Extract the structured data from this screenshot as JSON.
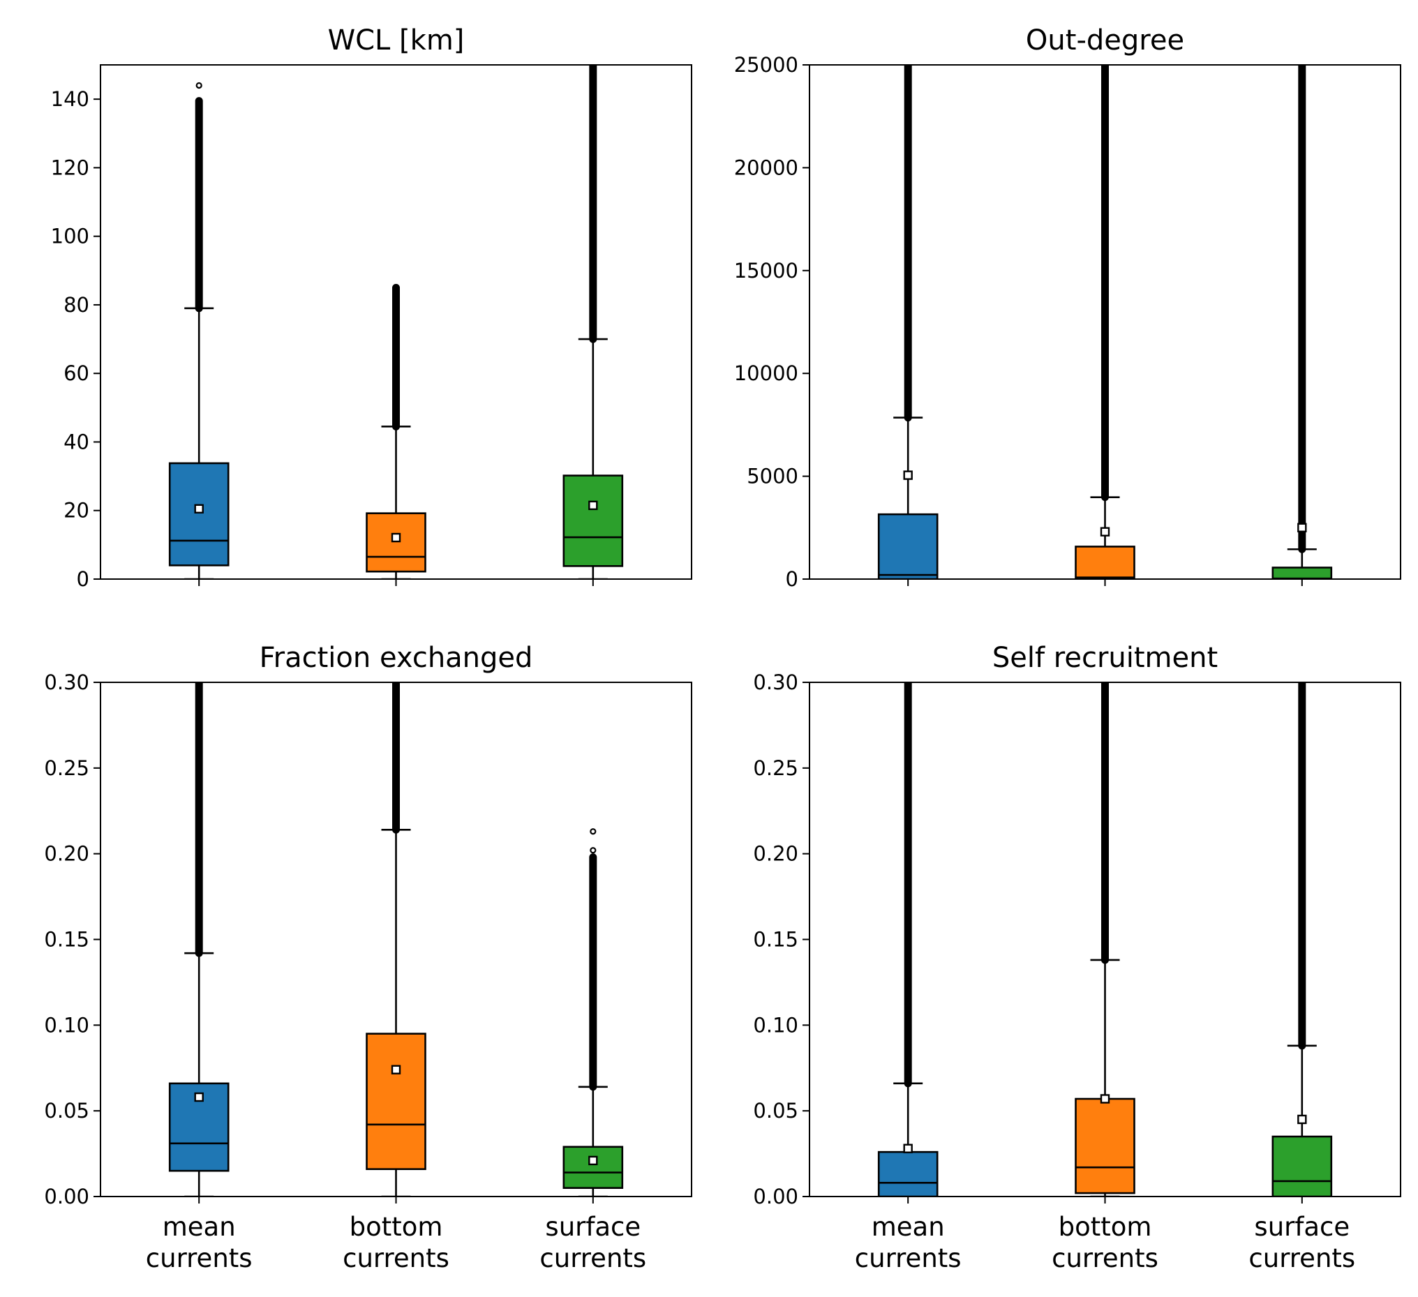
{
  "colors": {
    "mean": "#1f77b4",
    "bottom": "#ff7f0e",
    "surface": "#2ca02c"
  },
  "chart_data": [
    {
      "type": "box",
      "title": "WCL [km]",
      "ylim": [
        0,
        150
      ],
      "yticks": [
        "0",
        "20",
        "40",
        "60",
        "80",
        "100",
        "120",
        "140"
      ],
      "ytick_values": [
        0,
        20,
        40,
        60,
        80,
        100,
        120,
        140
      ],
      "categories": [
        "mean currents",
        "bottom currents",
        "surface currents"
      ],
      "show_xticklabels": false,
      "boxes": [
        {
          "q1": 4,
          "median": 11.2,
          "q3": 33.8,
          "whislo": 0,
          "whishi": 79,
          "mean": 20.5,
          "fliers_lo": 79,
          "fliers_hi": 139.5,
          "isolated": [
            144
          ]
        },
        {
          "q1": 2.2,
          "median": 6.5,
          "q3": 19.2,
          "whislo": 0,
          "whishi": 44.5,
          "mean": 12.1,
          "fliers_lo": 44.5,
          "fliers_hi": 85,
          "isolated": []
        },
        {
          "q1": 3.8,
          "median": 12.2,
          "q3": 30.2,
          "whislo": 0,
          "whishi": 70,
          "mean": 21.5,
          "fliers_lo": 70,
          "fliers_hi": 150,
          "isolated": []
        }
      ]
    },
    {
      "type": "box",
      "title": "Out-degree",
      "ylim": [
        0,
        25000
      ],
      "yticks": [
        "0",
        "5000",
        "10000",
        "15000",
        "20000",
        "25000"
      ],
      "ytick_values": [
        0,
        5000,
        10000,
        15000,
        20000,
        25000
      ],
      "categories": [
        "mean currents",
        "bottom currents",
        "surface currents"
      ],
      "show_xticklabels": false,
      "boxes": [
        {
          "q1": 0,
          "median": 200,
          "q3": 3150,
          "whislo": 0,
          "whishi": 7850,
          "mean": 5050,
          "fliers_lo": 7850,
          "fliers_hi": 25000,
          "isolated": []
        },
        {
          "q1": 0,
          "median": 80,
          "q3": 1580,
          "whislo": 0,
          "whishi": 3980,
          "mean": 2300,
          "fliers_lo": 3980,
          "fliers_hi": 25000,
          "isolated": []
        },
        {
          "q1": 0,
          "median": 30,
          "q3": 560,
          "whislo": 0,
          "whishi": 1450,
          "mean": 2500,
          "fliers_lo": 1450,
          "fliers_hi": 25000,
          "isolated": []
        }
      ]
    },
    {
      "type": "box",
      "title": "Fraction exchanged",
      "ylim": [
        0,
        0.3
      ],
      "yticks": [
        "0.00",
        "0.05",
        "0.10",
        "0.15",
        "0.20",
        "0.25",
        "0.30"
      ],
      "ytick_values": [
        0,
        0.05,
        0.1,
        0.15,
        0.2,
        0.25,
        0.3
      ],
      "categories": [
        "mean currents",
        "bottom currents",
        "surface currents"
      ],
      "show_xticklabels": true,
      "boxes": [
        {
          "q1": 0.015,
          "median": 0.031,
          "q3": 0.066,
          "whislo": 0,
          "whishi": 0.142,
          "mean": 0.058,
          "fliers_lo": 0.142,
          "fliers_hi": 0.3,
          "isolated": []
        },
        {
          "q1": 0.016,
          "median": 0.042,
          "q3": 0.095,
          "whislo": 0,
          "whishi": 0.214,
          "mean": 0.074,
          "fliers_lo": 0.214,
          "fliers_hi": 0.3,
          "isolated": []
        },
        {
          "q1": 0.005,
          "median": 0.014,
          "q3": 0.029,
          "whislo": 0,
          "whishi": 0.064,
          "mean": 0.021,
          "fliers_lo": 0.064,
          "fliers_hi": 0.198,
          "isolated": [
            0.202,
            0.213
          ]
        }
      ]
    },
    {
      "type": "box",
      "title": "Self recruitment",
      "ylim": [
        0,
        0.3
      ],
      "yticks": [
        "0.00",
        "0.05",
        "0.10",
        "0.15",
        "0.20",
        "0.25",
        "0.30"
      ],
      "ytick_values": [
        0,
        0.05,
        0.1,
        0.15,
        0.2,
        0.25,
        0.3
      ],
      "categories": [
        "mean currents",
        "bottom currents",
        "surface currents"
      ],
      "show_xticklabels": true,
      "boxes": [
        {
          "q1": 0,
          "median": 0.008,
          "q3": 0.026,
          "whislo": 0,
          "whishi": 0.066,
          "mean": 0.028,
          "fliers_lo": 0.066,
          "fliers_hi": 0.3,
          "isolated": []
        },
        {
          "q1": 0.002,
          "median": 0.017,
          "q3": 0.057,
          "whislo": 0,
          "whishi": 0.138,
          "mean": 0.057,
          "fliers_lo": 0.138,
          "fliers_hi": 0.3,
          "isolated": []
        },
        {
          "q1": 0,
          "median": 0.009,
          "q3": 0.035,
          "whislo": 0,
          "whishi": 0.088,
          "mean": 0.045,
          "fliers_lo": 0.088,
          "fliers_hi": 0.3,
          "isolated": []
        }
      ]
    }
  ]
}
